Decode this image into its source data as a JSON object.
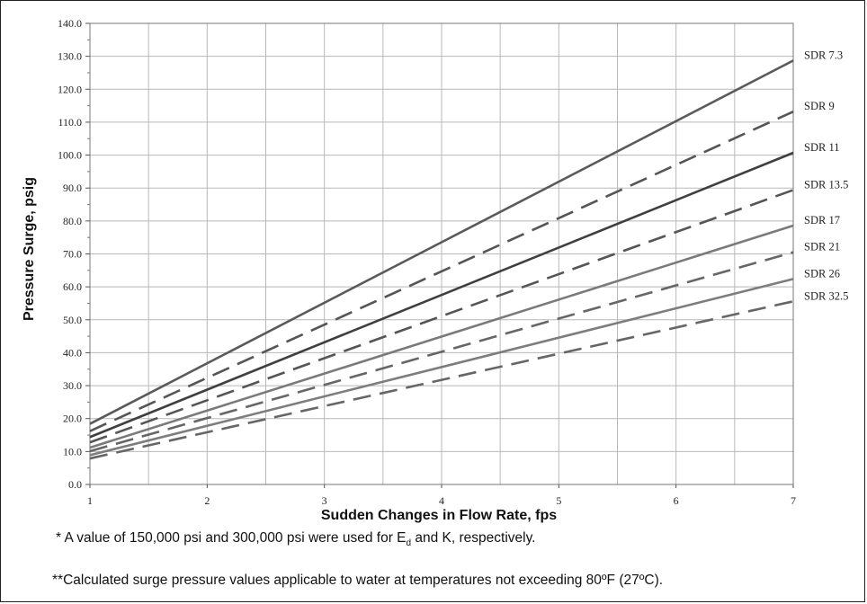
{
  "chart_data": {
    "type": "line",
    "title": "",
    "xlabel": "Sudden Changes in Flow Rate, fps",
    "ylabel": "Pressure Surge, psig",
    "xlim": [
      1,
      7
    ],
    "ylim": [
      0,
      140
    ],
    "x_ticks": [
      1,
      2,
      3,
      4,
      5,
      6,
      7
    ],
    "x_tick_labels": [
      "1",
      "2",
      "3",
      "4",
      "5",
      "6",
      "7"
    ],
    "y_ticks": [
      0,
      10,
      20,
      30,
      40,
      50,
      60,
      70,
      80,
      90,
      100,
      110,
      120,
      130,
      140
    ],
    "y_tick_labels": [
      "0.0",
      "10.0",
      "20.0",
      "30.0",
      "40.0",
      "50.0",
      "60.0",
      "70.0",
      "80.0",
      "90.0",
      "100.0",
      "110.0",
      "120.0",
      "130.0",
      "140.0"
    ],
    "x_minor_step": 0.5,
    "y_minor_step": 5,
    "grid": true,
    "legend": "line-end labels at right",
    "series": [
      {
        "name": "SDR 7.3",
        "x": [
          1,
          7
        ],
        "values": [
          18.4,
          128.7
        ],
        "style": "solid",
        "color": "#5a5a5a"
      },
      {
        "name": "SDR 9",
        "x": [
          1,
          7
        ],
        "values": [
          16.2,
          113.2
        ],
        "style": "dashed",
        "color": "#555555"
      },
      {
        "name": "SDR 11",
        "x": [
          1,
          7
        ],
        "values": [
          14.4,
          100.7
        ],
        "style": "solid",
        "color": "#3f3f3f"
      },
      {
        "name": "SDR 13.5",
        "x": [
          1,
          7
        ],
        "values": [
          12.8,
          89.4
        ],
        "style": "dashed",
        "color": "#555555"
      },
      {
        "name": "SDR 17",
        "x": [
          1,
          7
        ],
        "values": [
          11.2,
          78.6
        ],
        "style": "solid",
        "color": "#7a7a7a"
      },
      {
        "name": "SDR 21",
        "x": [
          1,
          7
        ],
        "values": [
          10.1,
          70.5
        ],
        "style": "dashed",
        "color": "#666666"
      },
      {
        "name": "SDR 26",
        "x": [
          1,
          7
        ],
        "values": [
          8.9,
          62.4
        ],
        "style": "solid",
        "color": "#7d7d7d"
      },
      {
        "name": "SDR 32.5",
        "x": [
          1,
          7
        ],
        "values": [
          7.9,
          55.6
        ],
        "style": "dashed",
        "color": "#666666"
      }
    ]
  },
  "footnotes": {
    "note1_before": "* A value of 150,000 psi and 300,000 psi were used for E",
    "note1_sub": "d",
    "note1_after": " and K, respectively.",
    "note2": "**Calculated surge pressure values applicable to water at temperatures not exceeding 80ºF (27ºC)."
  }
}
